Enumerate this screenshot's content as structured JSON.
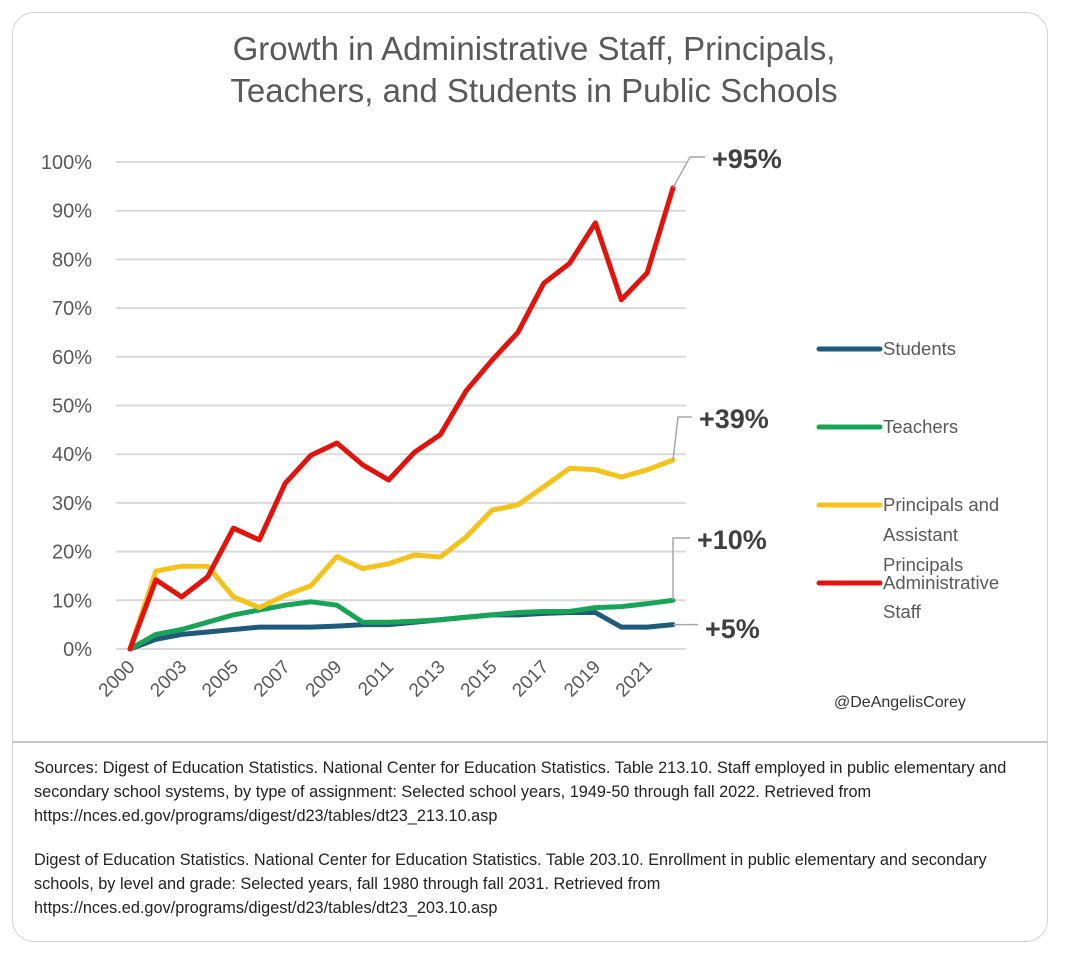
{
  "chart_data": {
    "type": "line",
    "title": "Growth in Administrative Staff, Principals, Teachers, and Students in Public Schools",
    "title_lines": [
      "Growth in Administrative Staff, Principals,",
      "Teachers, and Students in Public Schools"
    ],
    "xlabel": "",
    "ylabel": "",
    "ylim": [
      0,
      100
    ],
    "grid": true,
    "legend_position": "right",
    "categories": [
      2000,
      2002,
      2003,
      2004,
      2005,
      2006,
      2007,
      2008,
      2009,
      2010,
      2011,
      2012,
      2013,
      2014,
      2015,
      2016,
      2017,
      2018,
      2019,
      2020,
      2021,
      2022
    ],
    "x_tick_labels": [
      "2000",
      "2003",
      "2005",
      "2007",
      "2009",
      "2011",
      "2013",
      "2015",
      "2017",
      "2019",
      "2021"
    ],
    "y_tick_labels": [
      "0%",
      "10%",
      "20%",
      "30%",
      "40%",
      "50%",
      "60%",
      "70%",
      "80%",
      "90%",
      "100%"
    ],
    "series": [
      {
        "name": "Students",
        "color": "#1f5a7a",
        "values": [
          0,
          2,
          3,
          3.5,
          4,
          4.5,
          4.5,
          4.5,
          4.7,
          5,
          5,
          5.5,
          6,
          6.5,
          7,
          7,
          7.3,
          7.5,
          7.5,
          4.5,
          4.5,
          5
        ],
        "end_label": "+5%"
      },
      {
        "name": "Teachers",
        "color": "#17a457",
        "values": [
          0,
          3,
          4,
          5.5,
          7,
          8,
          9,
          9.7,
          9,
          5.5,
          5.5,
          5.7,
          6,
          6.5,
          7,
          7.5,
          7.7,
          7.7,
          8.5,
          8.7,
          9.3,
          10
        ],
        "end_label": "+10%"
      },
      {
        "name": "Principals and Assistant Principals",
        "legend_lines": [
          "Principals and",
          "Assistant",
          "Principals"
        ],
        "color": "#f5c21b",
        "values": [
          0,
          16,
          17,
          17,
          10.7,
          8.5,
          11,
          13,
          19,
          16.5,
          17.5,
          19.3,
          18.9,
          23,
          28.5,
          29.6,
          33.3,
          37.1,
          36.8,
          35.3,
          36.8,
          38.8
        ],
        "end_label": "+39%"
      },
      {
        "name": "Administrative Staff",
        "legend_lines": [
          "Administrative",
          "Staff"
        ],
        "color": "#e3120b",
        "values": [
          0,
          14.2,
          10.7,
          14.8,
          24.8,
          22.4,
          34,
          39.8,
          42.3,
          37.8,
          34.7,
          40.4,
          44,
          53,
          59.3,
          65,
          75.1,
          79.2,
          87.5,
          71.7,
          77.2,
          94.7
        ],
        "end_label": "+95%"
      }
    ]
  },
  "attribution": "@DeAngelisCorey",
  "sources": [
    "Sources: Digest of Education Statistics. National Center for Education Statistics. Table 213.10. Staff employed in public elementary and secondary school systems, by type of assignment: Selected school years, 1949-50 through fall 2022. Retrieved from https://nces.ed.gov/programs/digest/d23/tables/dt23_213.10.asp",
    "Digest of Education Statistics. National Center for Education Statistics. Table 203.10. Enrollment in public elementary and secondary schools, by level and grade: Selected years, fall 1980 through fall 2031. Retrieved from https://nces.ed.gov/programs/digest/d23/tables/dt23_203.10.asp"
  ]
}
